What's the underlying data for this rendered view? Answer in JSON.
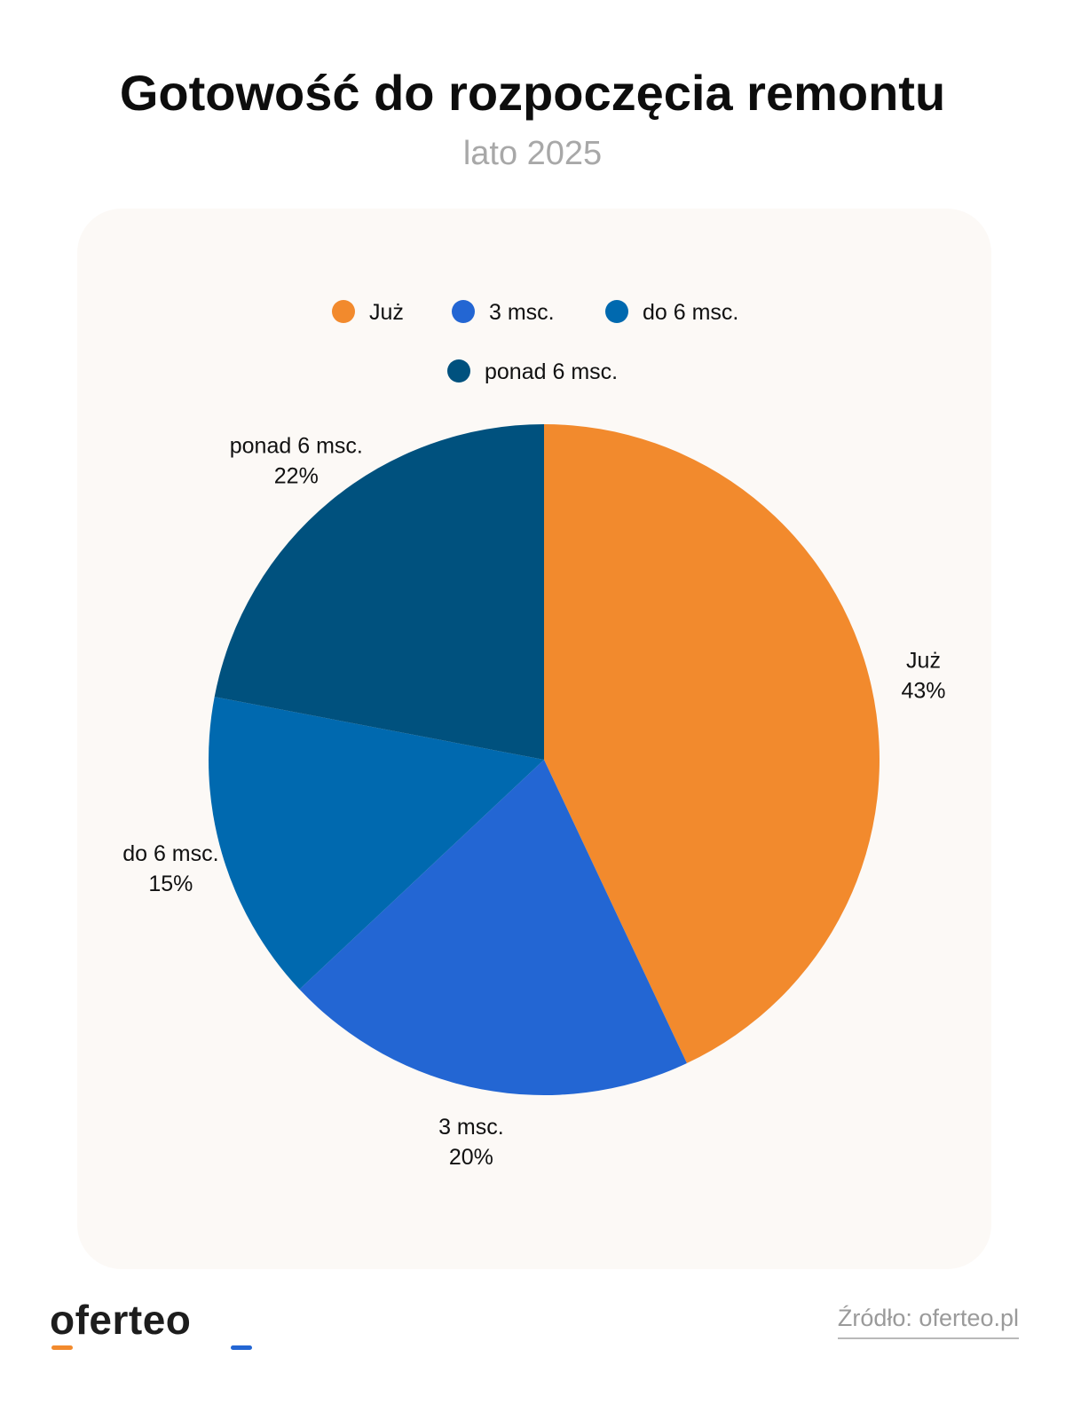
{
  "header": {
    "title": "Gotowość do rozpoczęcia remontu",
    "subtitle": "lato 2025"
  },
  "chart_data": {
    "type": "pie",
    "categories": [
      "Już",
      "3 msc.",
      "do 6 msc.",
      "ponad 6 msc."
    ],
    "values": [
      43,
      20,
      15,
      22
    ],
    "value_labels": [
      "43%",
      "20%",
      "15%",
      "22%"
    ],
    "colors": [
      "#F28A2D",
      "#2366D3",
      "#0069AF",
      "#00517E"
    ],
    "legend_position": "top-center",
    "start_angle": "12 o'clock, clockwise"
  },
  "footer": {
    "brand": "oferteo",
    "brand_colors": {
      "left": "#F28A2D",
      "right": "#2366D3"
    },
    "source": "Źródło: oferteo.pl"
  }
}
